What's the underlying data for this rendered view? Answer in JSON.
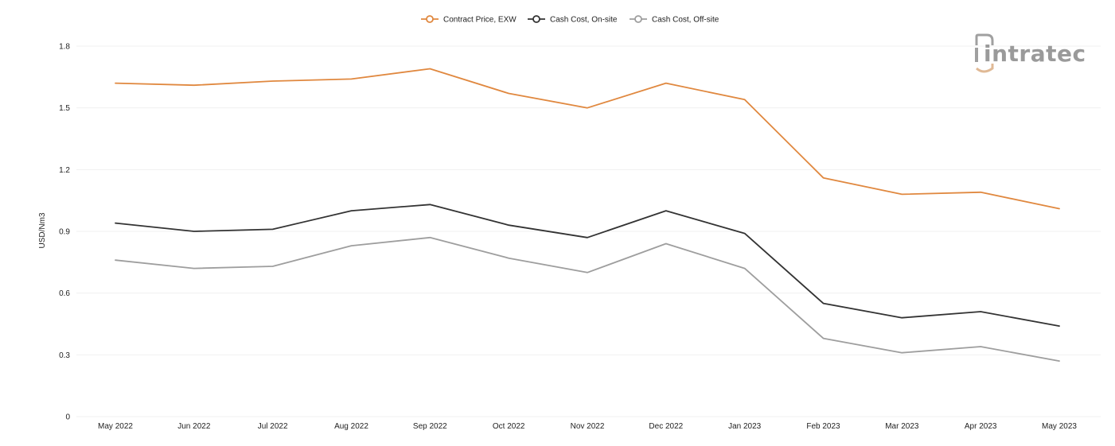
{
  "chart_data": {
    "type": "line",
    "title": "",
    "xlabel": "",
    "ylabel": "USD/Nm3",
    "categories": [
      "May 2022",
      "Jun 2022",
      "Jul 2022",
      "Aug 2022",
      "Sep 2022",
      "Oct 2022",
      "Nov 2022",
      "Dec 2022",
      "Jan 2023",
      "Feb 2023",
      "Mar 2023",
      "Apr 2023",
      "May 2023"
    ],
    "ylim": [
      0,
      1.8
    ],
    "yticks": [
      "0",
      "0.3",
      "0.6",
      "0.9",
      "1.2",
      "1.5",
      "1.8"
    ],
    "grid": true,
    "legend_position": "top-center",
    "series": [
      {
        "name": "Contract Price, EXW",
        "color": "#e0883f",
        "values": [
          1.62,
          1.61,
          1.63,
          1.64,
          1.69,
          1.57,
          1.5,
          1.62,
          1.54,
          1.16,
          1.08,
          1.09,
          1.01
        ]
      },
      {
        "name": "Cash Cost, On-site",
        "color": "#333333",
        "values": [
          0.94,
          0.9,
          0.91,
          1.0,
          1.03,
          0.93,
          0.87,
          1.0,
          0.89,
          0.55,
          0.48,
          0.51,
          0.44
        ]
      },
      {
        "name": "Cash Cost, Off-site",
        "color": "#9e9e9e",
        "values": [
          0.76,
          0.72,
          0.73,
          0.83,
          0.87,
          0.77,
          0.7,
          0.84,
          0.72,
          0.38,
          0.31,
          0.34,
          0.27
        ]
      }
    ]
  },
  "logo": {
    "text": "intratec",
    "icon": "intratec-logo-icon",
    "color": "#9a9a9a",
    "accent": "#e0b995"
  }
}
